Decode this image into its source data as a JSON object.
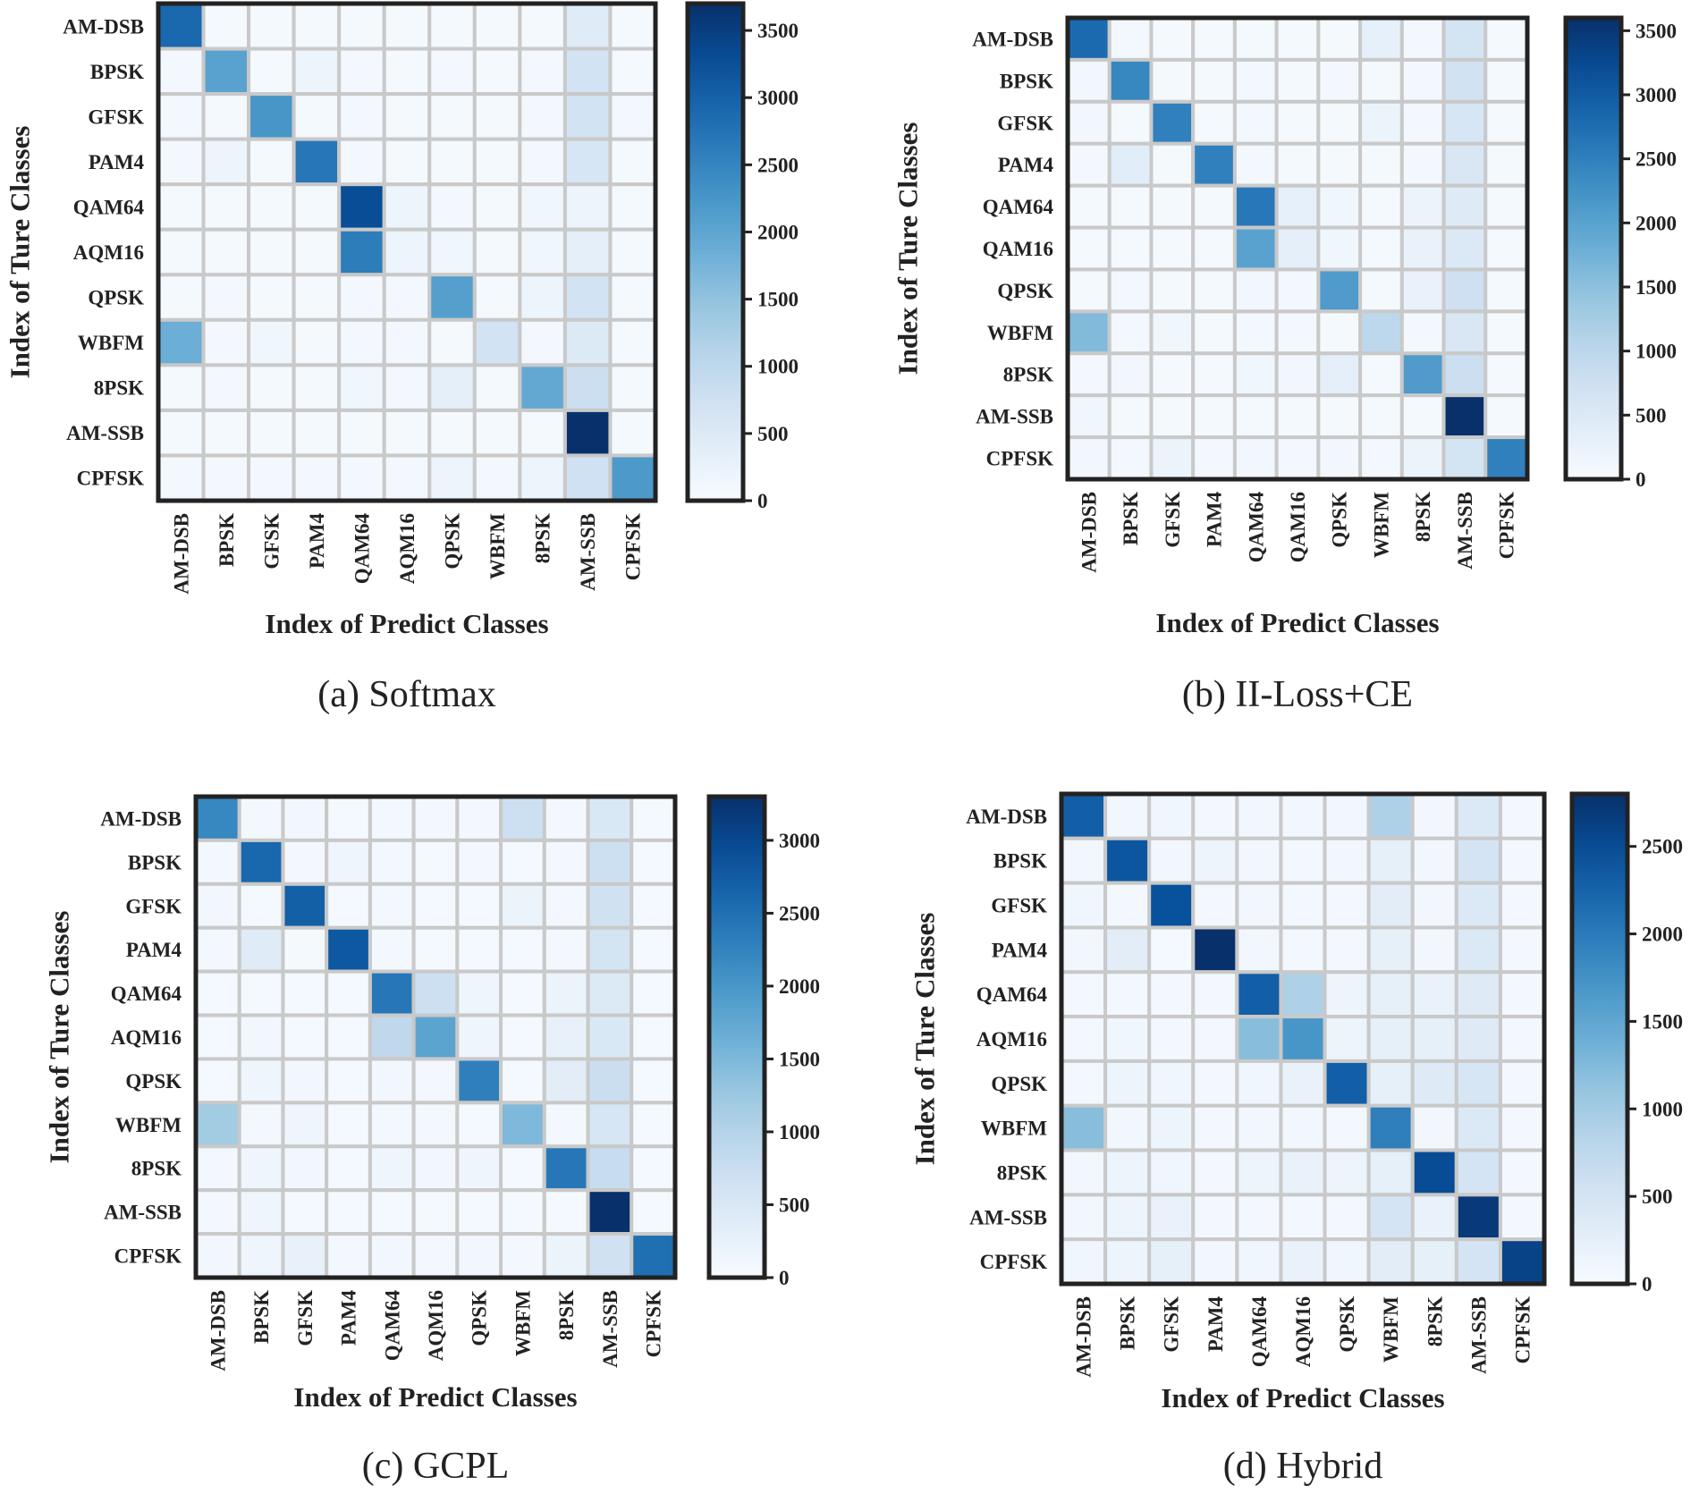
{
  "colors": {
    "low": "#f7fbff",
    "high": "#08306b",
    "grid": "#c9c9c9",
    "frame": "#222222"
  },
  "chart_data": [
    {
      "type": "heatmap",
      "caption": "(a)  Softmax",
      "xlabel": "Index of Predict Classes",
      "ylabel": "Index of Ture Classes",
      "x_labels": [
        "AM-DSB",
        "BPSK",
        "GFSK",
        "PAM4",
        "QAM64",
        "AQM16",
        "QPSK",
        "WBFM",
        "8PSK",
        "AM-SSB",
        "CPFSK"
      ],
      "y_labels": [
        "AM-DSB",
        "BPSK",
        "GFSK",
        "PAM4",
        "QAM64",
        "AQM16",
        "QPSK",
        "WBFM",
        "8PSK",
        "AM-SSB",
        "CPFSK"
      ],
      "colorbar": {
        "min": 0,
        "max": 3700,
        "ticks": [
          0,
          500,
          1000,
          1500,
          2000,
          2500,
          3000,
          3500
        ]
      },
      "matrix": [
        [
          2900,
          50,
          50,
          60,
          60,
          50,
          60,
          60,
          60,
          450,
          50
        ],
        [
          80,
          2050,
          50,
          200,
          80,
          60,
          80,
          60,
          80,
          700,
          60
        ],
        [
          100,
          60,
          2250,
          60,
          80,
          60,
          60,
          60,
          80,
          700,
          80
        ],
        [
          80,
          200,
          50,
          2700,
          80,
          60,
          60,
          60,
          80,
          600,
          60
        ],
        [
          60,
          60,
          50,
          60,
          3300,
          200,
          100,
          60,
          150,
          200,
          60
        ],
        [
          60,
          60,
          50,
          60,
          2600,
          200,
          150,
          60,
          150,
          350,
          60
        ],
        [
          60,
          80,
          60,
          60,
          100,
          80,
          2100,
          60,
          200,
          700,
          60
        ],
        [
          1850,
          80,
          150,
          60,
          80,
          80,
          60,
          700,
          80,
          500,
          60
        ],
        [
          60,
          100,
          60,
          60,
          150,
          100,
          350,
          60,
          1950,
          800,
          60
        ],
        [
          60,
          60,
          60,
          60,
          60,
          60,
          60,
          60,
          60,
          3700,
          60
        ],
        [
          80,
          80,
          80,
          80,
          100,
          80,
          200,
          80,
          200,
          750,
          2200
        ]
      ]
    },
    {
      "type": "heatmap",
      "caption": "(b)  II-Loss+CE",
      "xlabel": "Index of Predict Classes",
      "ylabel": "Index of Ture Classes",
      "x_labels": [
        "AM-DSB",
        "BPSK",
        "GFSK",
        "PAM4",
        "QAM64",
        "QAM16",
        "QPSK",
        "WBFM",
        "8PSK",
        "AM-SSB",
        "CPFSK"
      ],
      "y_labels": [
        "AM-DSB",
        "BPSK",
        "GFSK",
        "PAM4",
        "QAM64",
        "QAM16",
        "QPSK",
        "WBFM",
        "8PSK",
        "AM-SSB",
        "CPFSK"
      ],
      "colorbar": {
        "min": 0,
        "max": 3600,
        "ticks": [
          0,
          500,
          1000,
          1500,
          2000,
          2500,
          3000,
          3500
        ]
      },
      "matrix": [
        [
          2800,
          80,
          50,
          60,
          60,
          50,
          60,
          300,
          80,
          650,
          60
        ],
        [
          100,
          2400,
          50,
          60,
          80,
          60,
          80,
          60,
          80,
          700,
          60
        ],
        [
          100,
          60,
          2500,
          60,
          80,
          60,
          60,
          200,
          80,
          600,
          60
        ],
        [
          80,
          400,
          50,
          2500,
          80,
          60,
          60,
          60,
          80,
          550,
          60
        ],
        [
          60,
          60,
          50,
          60,
          2600,
          300,
          150,
          60,
          200,
          450,
          60
        ],
        [
          60,
          60,
          50,
          60,
          2000,
          350,
          150,
          60,
          250,
          500,
          60
        ],
        [
          60,
          80,
          60,
          60,
          100,
          80,
          2100,
          60,
          250,
          750,
          60
        ],
        [
          1600,
          80,
          150,
          60,
          80,
          80,
          60,
          1000,
          80,
          550,
          60
        ],
        [
          80,
          100,
          60,
          60,
          150,
          100,
          350,
          60,
          2100,
          800,
          60
        ],
        [
          150,
          60,
          60,
          60,
          60,
          60,
          60,
          60,
          60,
          3600,
          60
        ],
        [
          100,
          80,
          200,
          80,
          100,
          80,
          100,
          80,
          200,
          650,
          2500
        ]
      ]
    },
    {
      "type": "heatmap",
      "caption": "(c)  GCPL",
      "xlabel": "Index of Predict Classes",
      "ylabel": "Index of Ture Classes",
      "x_labels": [
        "AM-DSB",
        "BPSK",
        "GFSK",
        "PAM4",
        "QAM64",
        "AQM16",
        "QPSK",
        "WBFM",
        "8PSK",
        "AM-SSB",
        "CPFSK"
      ],
      "y_labels": [
        "AM-DSB",
        "BPSK",
        "GFSK",
        "PAM4",
        "QAM64",
        "AQM16",
        "QPSK",
        "WBFM",
        "8PSK",
        "AM-SSB",
        "CPFSK"
      ],
      "colorbar": {
        "min": 0,
        "max": 3300,
        "ticks": [
          0,
          500,
          1000,
          1500,
          2000,
          2500,
          3000
        ]
      },
      "matrix": [
        [
          2200,
          80,
          100,
          60,
          80,
          80,
          80,
          700,
          80,
          500,
          60
        ],
        [
          80,
          2600,
          80,
          150,
          80,
          60,
          80,
          60,
          80,
          700,
          60
        ],
        [
          100,
          60,
          2700,
          60,
          80,
          60,
          60,
          200,
          80,
          650,
          60
        ],
        [
          80,
          400,
          50,
          2800,
          80,
          60,
          60,
          60,
          80,
          600,
          60
        ],
        [
          60,
          60,
          60,
          60,
          2400,
          700,
          150,
          60,
          200,
          450,
          60
        ],
        [
          60,
          100,
          60,
          60,
          900,
          1800,
          150,
          60,
          250,
          500,
          60
        ],
        [
          60,
          150,
          100,
          60,
          100,
          80,
          2300,
          60,
          350,
          750,
          60
        ],
        [
          1200,
          80,
          150,
          60,
          80,
          80,
          60,
          1500,
          80,
          550,
          60
        ],
        [
          80,
          150,
          100,
          60,
          150,
          100,
          150,
          60,
          2400,
          800,
          60
        ],
        [
          80,
          150,
          60,
          60,
          60,
          60,
          60,
          60,
          60,
          3300,
          60
        ],
        [
          100,
          150,
          250,
          80,
          100,
          80,
          100,
          80,
          200,
          650,
          2500
        ]
      ]
    },
    {
      "type": "heatmap",
      "caption": "(d)  Hybrid",
      "xlabel": "Index of Predict Classes",
      "ylabel": "Index of Ture Classes",
      "x_labels": [
        "AM-DSB",
        "BPSK",
        "GFSK",
        "PAM4",
        "QAM64",
        "AQM16",
        "QPSK",
        "WBFM",
        "8PSK",
        "AM-SSB",
        "CPFSK"
      ],
      "y_labels": [
        "AM-DSB",
        "BPSK",
        "GFSK",
        "PAM4",
        "QAM64",
        "AQM16",
        "QPSK",
        "WBFM",
        "8PSK",
        "AM-SSB",
        "CPFSK"
      ],
      "colorbar": {
        "min": 0,
        "max": 2800,
        "ticks": [
          0,
          500,
          1000,
          1500,
          2000,
          2500
        ]
      },
      "matrix": [
        [
          2300,
          80,
          100,
          60,
          80,
          80,
          80,
          900,
          80,
          400,
          60
        ],
        [
          80,
          2400,
          80,
          150,
          80,
          60,
          80,
          250,
          80,
          500,
          60
        ],
        [
          100,
          60,
          2450,
          60,
          80,
          60,
          60,
          300,
          80,
          400,
          60
        ],
        [
          80,
          300,
          50,
          2800,
          80,
          60,
          60,
          250,
          80,
          400,
          60
        ],
        [
          60,
          60,
          60,
          60,
          2300,
          900,
          150,
          250,
          200,
          350,
          60
        ],
        [
          60,
          100,
          60,
          60,
          1200,
          1700,
          150,
          250,
          250,
          350,
          60
        ],
        [
          60,
          150,
          100,
          60,
          100,
          200,
          2300,
          250,
          350,
          450,
          60
        ],
        [
          1200,
          80,
          150,
          60,
          80,
          80,
          60,
          1950,
          80,
          400,
          60
        ],
        [
          80,
          150,
          100,
          60,
          150,
          200,
          150,
          250,
          2500,
          500,
          60
        ],
        [
          80,
          150,
          200,
          60,
          60,
          60,
          60,
          500,
          200,
          2700,
          60
        ],
        [
          100,
          150,
          250,
          80,
          100,
          200,
          100,
          300,
          250,
          500,
          2600
        ]
      ]
    }
  ]
}
